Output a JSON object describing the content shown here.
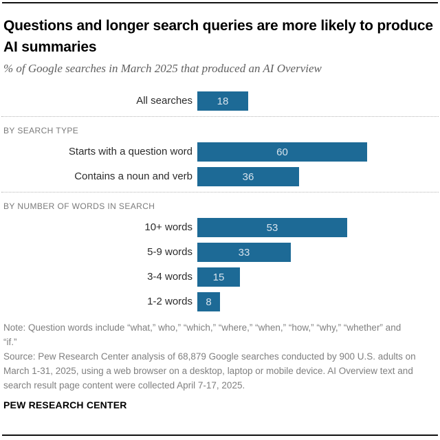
{
  "header": {
    "title": "Questions and longer search queries are more likely to produce AI summaries",
    "subtitle": "% of Google searches in March 2025 that produced an AI Overview"
  },
  "chart_data": {
    "type": "bar",
    "orientation": "horizontal",
    "unit": "% of searches",
    "xlim": [
      0,
      62
    ],
    "bar_color": "#1d6a96",
    "value_label_color": "#d7e3ed",
    "groups": [
      {
        "label": "",
        "categories": [
          "All searches"
        ],
        "values": [
          18
        ]
      },
      {
        "label": "BY SEARCH TYPE",
        "categories": [
          "Starts with a question word",
          "Contains a noun and verb"
        ],
        "values": [
          60,
          36
        ]
      },
      {
        "label": "BY NUMBER OF WORDS IN SEARCH",
        "categories": [
          "10+ words",
          "5-9 words",
          "3-4 words",
          "1-2 words"
        ],
        "values": [
          53,
          33,
          15,
          8
        ]
      }
    ]
  },
  "footer": {
    "note": "Note: Question words include “what,” who,” “which,” “where,” “when,” “how,” “why,” “whether” and “if.”",
    "source": "Source: Pew Research Center analysis of 68,879 Google searches conducted by 900 U.S. adults on March 1-31, 2025, using a web browser on a desktop, laptop or mobile device. AI Overview text and search result page content were collected April 7-17, 2025.",
    "brand": "PEW RESEARCH CENTER"
  }
}
